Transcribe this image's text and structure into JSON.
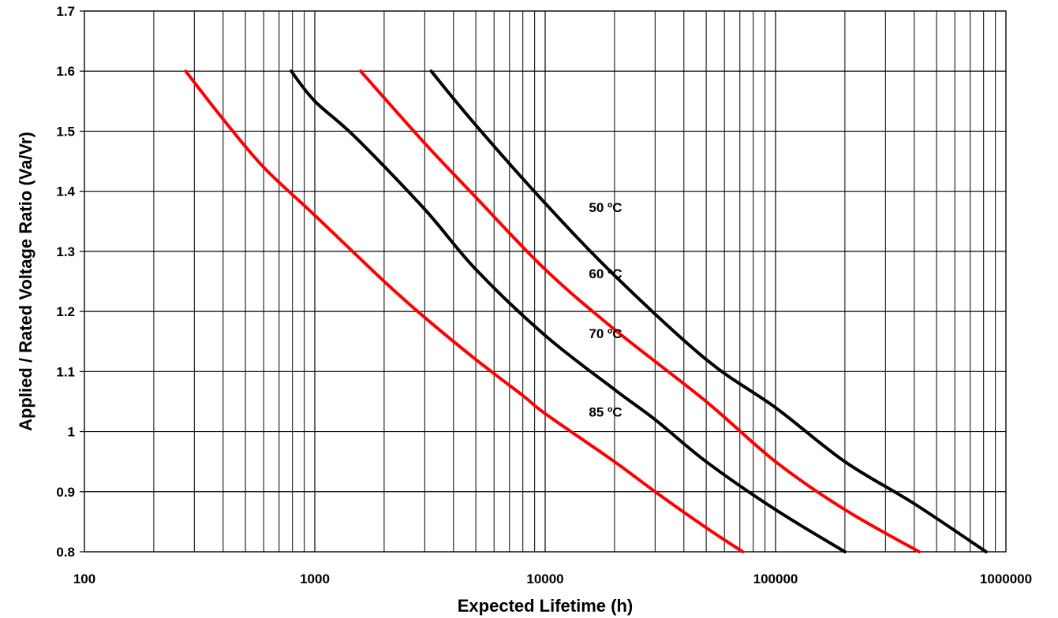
{
  "chart_data": {
    "type": "line",
    "title": "",
    "xlabel": "Expected Lifetime (h)",
    "ylabel": "Applied / Rated Voltage Ratio (Va/Vr)",
    "x_scale": "log",
    "xlim": [
      100,
      1000000
    ],
    "ylim": [
      0.8,
      1.7
    ],
    "grid": true,
    "x_ticks": [
      "100",
      "1000",
      "10000",
      "100000",
      "1000000"
    ],
    "y_ticks": [
      "0.8",
      "0.9",
      "1",
      "1.1",
      "1.2",
      "1.3",
      "1.4",
      "1.5",
      "1.6",
      "1.7"
    ],
    "series": [
      {
        "name": "85 ºC",
        "color": "#ff0000",
        "label_at": {
          "x": 15000,
          "y": 1.02
        },
        "points": [
          [
            275,
            1.6
          ],
          [
            400,
            1.52
          ],
          [
            600,
            1.44
          ],
          [
            1000,
            1.36
          ],
          [
            2000,
            1.25
          ],
          [
            3000,
            1.19
          ],
          [
            5000,
            1.12
          ],
          [
            8000,
            1.06
          ],
          [
            10000,
            1.03
          ],
          [
            20000,
            0.95
          ],
          [
            30000,
            0.9
          ],
          [
            50000,
            0.84
          ],
          [
            72000,
            0.8
          ]
        ]
      },
      {
        "name": "70 ºC",
        "color": "#000000",
        "label_at": {
          "x": 15000,
          "y": 1.15
        },
        "points": [
          [
            790,
            1.6
          ],
          [
            1000,
            1.55
          ],
          [
            1500,
            1.49
          ],
          [
            3000,
            1.37
          ],
          [
            5000,
            1.27
          ],
          [
            10000,
            1.16
          ],
          [
            20000,
            1.07
          ],
          [
            30000,
            1.02
          ],
          [
            50000,
            0.95
          ],
          [
            100000,
            0.87
          ],
          [
            200000,
            0.8
          ]
        ]
      },
      {
        "name": "60 ºC",
        "color": "#ff0000",
        "label_at": {
          "x": 15000,
          "y": 1.25
        },
        "points": [
          [
            1580,
            1.6
          ],
          [
            3000,
            1.48
          ],
          [
            5000,
            1.39
          ],
          [
            10000,
            1.27
          ],
          [
            20000,
            1.17
          ],
          [
            50000,
            1.05
          ],
          [
            100000,
            0.95
          ],
          [
            200000,
            0.87
          ],
          [
            420000,
            0.8
          ]
        ]
      },
      {
        "name": "50 ºC",
        "color": "#000000",
        "label_at": {
          "x": 15000,
          "y": 1.36
        },
        "points": [
          [
            3200,
            1.6
          ],
          [
            5000,
            1.51
          ],
          [
            10000,
            1.38
          ],
          [
            20000,
            1.26
          ],
          [
            50000,
            1.12
          ],
          [
            100000,
            1.04
          ],
          [
            200000,
            0.95
          ],
          [
            400000,
            0.88
          ],
          [
            820000,
            0.8
          ]
        ]
      }
    ]
  }
}
